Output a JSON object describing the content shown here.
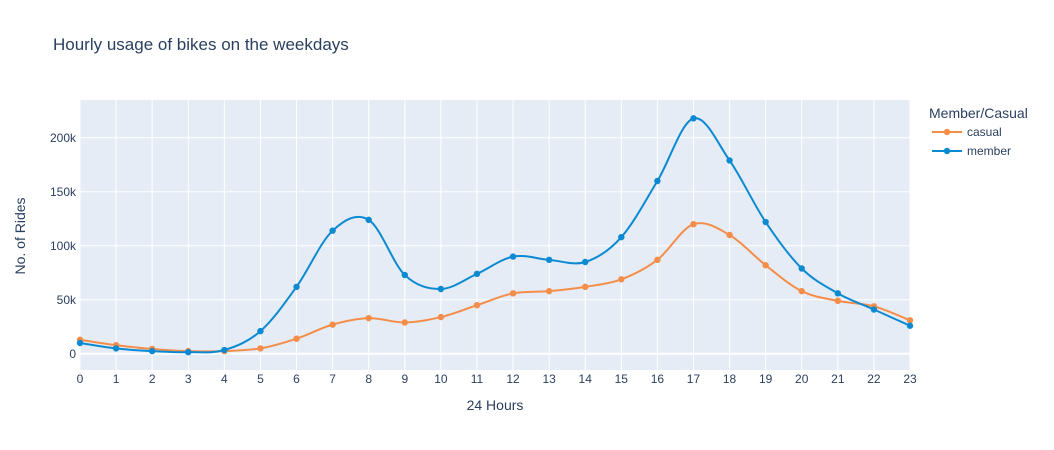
{
  "chart_data": {
    "type": "line",
    "title": "Hourly usage of bikes on the weekdays",
    "xlabel": "24 Hours",
    "ylabel": "No. of Rides",
    "x": [
      0,
      1,
      2,
      3,
      4,
      5,
      6,
      7,
      8,
      9,
      10,
      11,
      12,
      13,
      14,
      15,
      16,
      17,
      18,
      19,
      20,
      21,
      22,
      23
    ],
    "x_tick_labels": [
      "0",
      "1",
      "2",
      "3",
      "4",
      "5",
      "6",
      "7",
      "8",
      "9",
      "10",
      "11",
      "12",
      "13",
      "14",
      "15",
      "16",
      "17",
      "18",
      "19",
      "20",
      "21",
      "22",
      "23"
    ],
    "xlim": [
      0,
      23
    ],
    "ylim": [
      -15000,
      235000
    ],
    "y_ticks": [
      0,
      50000,
      100000,
      150000,
      200000
    ],
    "y_tick_labels": [
      "0",
      "50k",
      "100k",
      "150k",
      "200k"
    ],
    "legend": {
      "title": "Member/Casual",
      "placement": "right"
    },
    "grid": true,
    "series": [
      {
        "name": "casual",
        "color": "#f58d4a",
        "values": [
          13000,
          8000,
          4500,
          2500,
          2500,
          5000,
          14000,
          27000,
          33000,
          29000,
          34000,
          45000,
          56000,
          58000,
          62000,
          69000,
          87000,
          120000,
          110000,
          82000,
          58000,
          49000,
          44000,
          31000
        ]
      },
      {
        "name": "member",
        "color": "#0c8ad1",
        "values": [
          10000,
          5000,
          2500,
          1500,
          3500,
          21000,
          62000,
          114000,
          124000,
          73000,
          60000,
          74000,
          90000,
          87000,
          85000,
          108000,
          160000,
          218000,
          179000,
          122000,
          79000,
          56000,
          41000,
          26000
        ]
      }
    ]
  }
}
